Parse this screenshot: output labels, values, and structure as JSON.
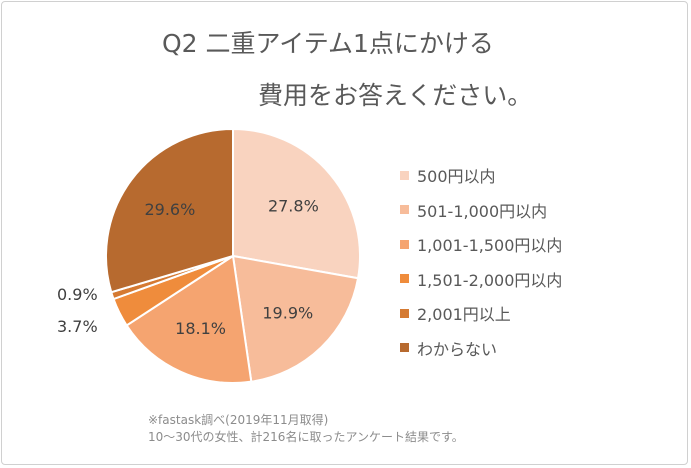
{
  "chart_data": {
    "type": "pie",
    "title_line1": "Q2 二重アイテム1点にかける",
    "title_line2": "費用をお答えください。",
    "categories": [
      "500円以内",
      "501-1,000円以内",
      "1,001-1,500円以内",
      "1,501-2,000円以内",
      "2,001円以上",
      "わからない"
    ],
    "values": [
      27.8,
      19.9,
      18.1,
      3.7,
      0.9,
      29.6
    ],
    "labels": [
      "27.8%",
      "19.9%",
      "18.1%",
      "3.7%",
      "0.9%",
      "29.6%"
    ],
    "colors": [
      "#F9D3BF",
      "#F7BC9A",
      "#F5A470",
      "#EF8C3C",
      "#D57A32",
      "#B76A2F"
    ],
    "start_angle": "12 o'clock, clockwise",
    "legend_position": "right"
  },
  "notes": {
    "source": "※fastask調べ(2019年11月取得)",
    "sample": "10〜30代の女性、計216名に取ったアンケート結果です。"
  }
}
